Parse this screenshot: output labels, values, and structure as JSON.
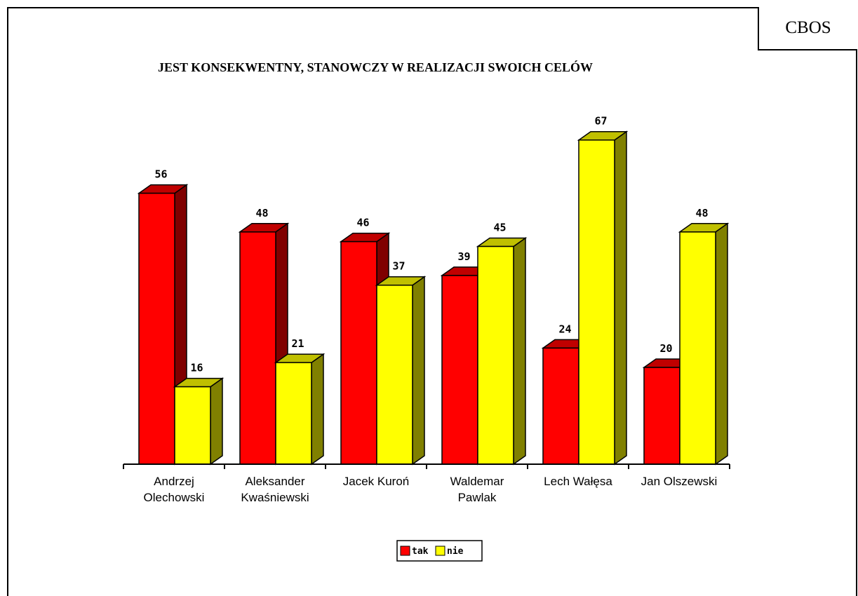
{
  "source_label": "CBOS",
  "chart_data": {
    "type": "bar",
    "title": "JEST KONSEKWENTNY, STANOWCZY W REALIZACJI SWOICH CELÓW",
    "categories": [
      [
        "Andrzej",
        "Olechowski"
      ],
      [
        "Aleksander",
        "Kwaśniewski"
      ],
      [
        "Jacek Kuroń"
      ],
      [
        "Waldemar",
        "Pawlak"
      ],
      [
        "Lech Wałęsa"
      ],
      [
        "Jan Olszewski"
      ]
    ],
    "series": [
      {
        "name": "tak",
        "values": [
          56,
          48,
          46,
          39,
          24,
          20
        ],
        "color": "#ff0000",
        "side_color": "#800000",
        "top_color": "#c00000"
      },
      {
        "name": "nie",
        "values": [
          16,
          21,
          37,
          45,
          67,
          48
        ],
        "color": "#ffff00",
        "side_color": "#808000",
        "top_color": "#c0c000"
      }
    ],
    "ylim": [
      0,
      70
    ],
    "grid": false,
    "legend_position": "bottom-center",
    "style": "3d-clustered-bar"
  }
}
